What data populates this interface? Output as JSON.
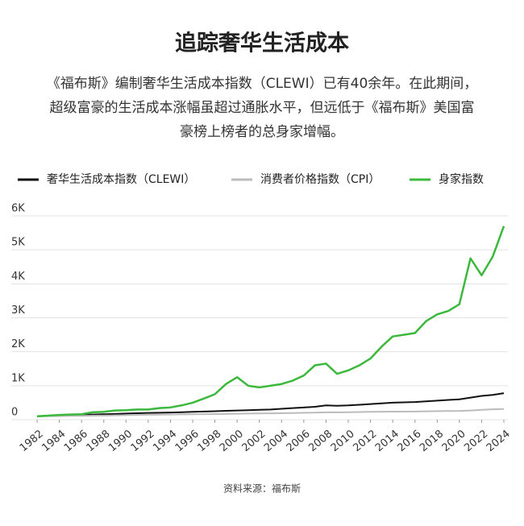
{
  "chart_data": {
    "type": "line",
    "title": "追踪奢华生活成本",
    "subtitle": [
      "《福布斯》编制奢华生活成本指数（CLEWI）已有40余年。在此期间，",
      "超级富豪的生活成本涨幅虽超过通胀水平，但远低于《福布斯》美国富",
      "豪榜上榜者的总身家增幅。"
    ],
    "source": "资料来源：福布斯",
    "x": [
      1982,
      1983,
      1984,
      1985,
      1986,
      1987,
      1988,
      1989,
      1990,
      1991,
      1992,
      1993,
      1994,
      1995,
      1996,
      1997,
      1998,
      1999,
      2000,
      2001,
      2002,
      2003,
      2004,
      2005,
      2006,
      2007,
      2008,
      2009,
      2010,
      2011,
      2012,
      2013,
      2014,
      2015,
      2016,
      2017,
      2018,
      2019,
      2020,
      2021,
      2022,
      2023,
      2024
    ],
    "series": [
      {
        "name": "奢华生活成本指数（CLEWI）",
        "color": "#111111",
        "values": [
          100,
          110,
          120,
          130,
          140,
          150,
          160,
          170,
          180,
          190,
          200,
          205,
          210,
          220,
          230,
          240,
          250,
          260,
          270,
          280,
          290,
          300,
          320,
          340,
          360,
          380,
          420,
          410,
          420,
          440,
          460,
          480,
          500,
          510,
          520,
          540,
          560,
          580,
          600,
          650,
          700,
          730,
          780
        ]
      },
      {
        "name": "消费者价格指数（CPI）",
        "color": "#bbbbbb",
        "values": [
          100,
          104,
          108,
          112,
          114,
          118,
          122,
          128,
          134,
          140,
          144,
          148,
          152,
          156,
          160,
          164,
          166,
          170,
          175,
          180,
          183,
          187,
          191,
          196,
          203,
          208,
          216,
          215,
          219,
          226,
          230,
          234,
          237,
          238,
          241,
          246,
          252,
          256,
          258,
          271,
          292,
          304,
          315
        ]
      },
      {
        "name": "身家指数",
        "color": "#3cb83c",
        "values": [
          100,
          120,
          140,
          150,
          160,
          220,
          230,
          270,
          280,
          300,
          300,
          340,
          360,
          420,
          500,
          620,
          750,
          1050,
          1250,
          1000,
          950,
          1000,
          1050,
          1150,
          1300,
          1600,
          1650,
          1350,
          1450,
          1600,
          1800,
          2150,
          2450,
          2500,
          2550,
          2900,
          3100,
          3200,
          3400,
          4750,
          4250,
          4800,
          5700
        ]
      }
    ],
    "xlim": [
      1982,
      2024
    ],
    "xticks": [
      1982,
      1984,
      1986,
      1988,
      1990,
      1992,
      1994,
      1996,
      1998,
      2000,
      2002,
      2004,
      2006,
      2008,
      2010,
      2012,
      2014,
      2016,
      2018,
      2020,
      2022,
      2024
    ],
    "ylim": [
      0,
      6000
    ],
    "yticks": [
      0,
      {
        "value": 1000,
        "label": "1K"
      },
      {
        "value": 2000,
        "label": "2K"
      },
      {
        "value": 3000,
        "label": "3K"
      },
      {
        "value": 4000,
        "label": "4K"
      },
      {
        "value": 5000,
        "label": "5K"
      },
      {
        "value": 6000,
        "label": "6K"
      }
    ],
    "grid": true
  }
}
